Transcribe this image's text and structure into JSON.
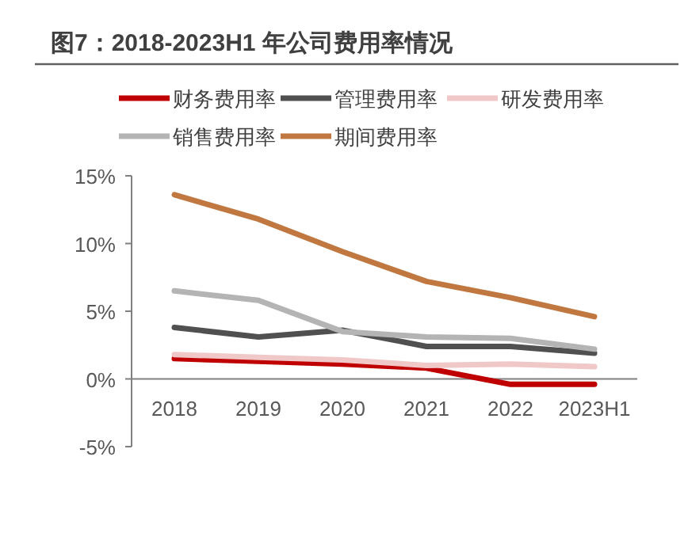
{
  "chart_data": {
    "type": "line",
    "title": "图7：2018-2023H1 年公司费用率情况",
    "categories": [
      "2018",
      "2019",
      "2020",
      "2021",
      "2022",
      "2023H1"
    ],
    "series": [
      {
        "name": "财务费用率",
        "color": "#c00000",
        "values": [
          1.5,
          1.3,
          1.1,
          0.8,
          -0.4,
          -0.4
        ]
      },
      {
        "name": "管理费用率",
        "color": "#505050",
        "values": [
          3.8,
          3.1,
          3.6,
          2.4,
          2.4,
          1.9
        ]
      },
      {
        "name": "研发费用率",
        "color": "#f0c8c8",
        "values": [
          1.8,
          1.6,
          1.4,
          1.0,
          1.1,
          0.9
        ]
      },
      {
        "name": "销售费用率",
        "color": "#b4b4b4",
        "values": [
          6.5,
          5.8,
          3.5,
          3.1,
          3.0,
          2.2
        ]
      },
      {
        "name": "期间费用率",
        "color": "#c07840",
        "values": [
          13.6,
          11.8,
          9.4,
          7.2,
          6.0,
          4.6
        ]
      }
    ],
    "ylim": [
      -5,
      15
    ],
    "yticks": [
      {
        "value": -5,
        "label": "-5%"
      },
      {
        "value": 0,
        "label": "0%"
      },
      {
        "value": 5,
        "label": "5%"
      },
      {
        "value": 10,
        "label": "10%"
      },
      {
        "value": 15,
        "label": "15%"
      }
    ],
    "grid": false,
    "legend": "top",
    "marker": "none",
    "line_style": "solid"
  }
}
